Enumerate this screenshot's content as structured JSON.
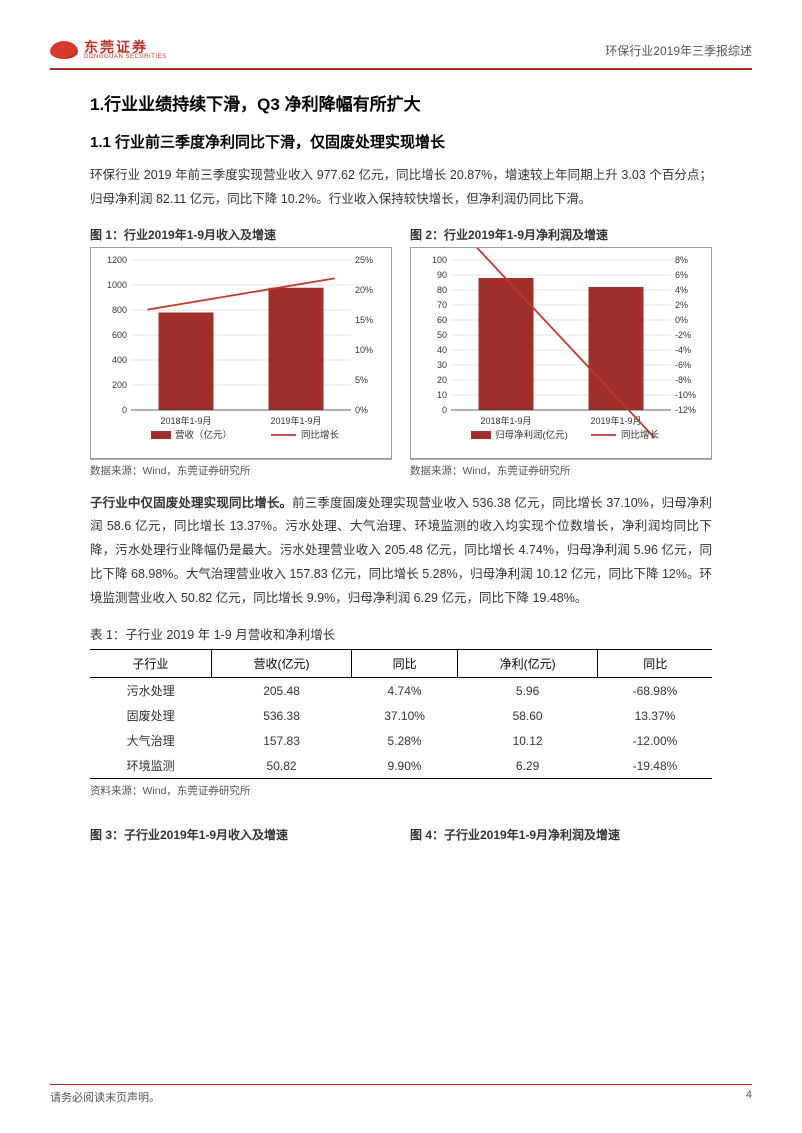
{
  "header": {
    "logo_cn": "东莞证券",
    "logo_en": "DONGGUAN SECURITIES",
    "doc_title": "环保行业2019年三季报综述"
  },
  "h1": "1.行业业绩持续下滑，Q3 净利降幅有所扩大",
  "h2": "1.1 行业前三季度净利同比下滑，仅固废处理实现增长",
  "para1": "环保行业 2019 年前三季度实现营业收入 977.62 亿元，同比增长 20.87%，增速较上年同期上升 3.03 个百分点；归母净利润 82.11 亿元，同比下降 10.2%。行业收入保持较快增长，但净利润仍同比下滑。",
  "chart1": {
    "title": "图 1：行业2019年1-9月收入及增速",
    "type": "bar+line",
    "categories": [
      "2018年1-9月",
      "2019年1-9月"
    ],
    "bar_values": [
      780,
      978
    ],
    "line_values_pct": [
      17.8,
      20.87
    ],
    "y_left": {
      "min": 0,
      "max": 1200,
      "ticks": [
        0,
        200,
        400,
        600,
        800,
        1000,
        1200
      ]
    },
    "y_right": {
      "min": 0,
      "max": 25,
      "ticks": [
        0,
        5,
        10,
        15,
        20,
        25
      ],
      "suffix": "%"
    },
    "bar_color": "#a02e2a",
    "line_color": "#c0392b",
    "legend_bar": "营收（亿元）",
    "legend_line": "同比增长",
    "source": "数据来源：Wind，东莞证券研究所",
    "bg_color": "#ffffff",
    "border_color": "#999999",
    "axis_font_size": 9,
    "grid_color": "#cccccc"
  },
  "chart2": {
    "title": "图 2：行业2019年1-9月净利润及增速",
    "type": "bar+line",
    "categories": [
      "2018年1-9月",
      "2019年1-9月"
    ],
    "bar_values": [
      88,
      82
    ],
    "line_values_pct": [
      5.5,
      -10.2
    ],
    "y_left": {
      "min": 0,
      "max": 100,
      "ticks": [
        0,
        10,
        20,
        30,
        40,
        50,
        60,
        70,
        80,
        90,
        100
      ]
    },
    "y_right": {
      "min": -12,
      "max": 8,
      "ticks": [
        -12,
        -10,
        -8,
        -6,
        -4,
        -2,
        0,
        2,
        4,
        6,
        8
      ],
      "suffix": "%"
    },
    "bar_color": "#a02e2a",
    "line_color": "#c0392b",
    "legend_bar": "归母净利润(亿元)",
    "legend_line": "同比增长",
    "source": "数据来源：Wind，东莞证券研究所",
    "bg_color": "#ffffff",
    "border_color": "#999999",
    "axis_font_size": 9,
    "grid_color": "#cccccc"
  },
  "para2": "子行业中仅固废处理实现同比增长。前三季度固废处理实现营业收入 536.38 亿元，同比增长 37.10%，归母净利润 58.6 亿元，同比增长 13.37%。污水处理、大气治理、环境监测的收入均实现个位数增长，净利润均同比下降，污水处理行业降幅仍是最大。污水处理营业收入 205.48 亿元，同比增长 4.74%，归母净利润 5.96 亿元，同比下降 68.98%。大气治理营业收入 157.83 亿元，同比增长 5.28%，归母净利润 10.12 亿元，同比下降 12%。环境监测营业收入 50.82 亿元，同比增长 9.9%，归母净利润 6.29 亿元，同比下降 19.48%。",
  "para2_bold_prefix": "子行业中仅固废处理实现同比增长。",
  "table": {
    "title": "表 1：子行业 2019 年 1-9 月营收和净利增长",
    "columns": [
      "子行业",
      "营收(亿元)",
      "同比",
      "净利(亿元)",
      "同比"
    ],
    "rows": [
      [
        "污水处理",
        "205.48",
        "4.74%",
        "5.96",
        "-68.98%"
      ],
      [
        "固废处理",
        "536.38",
        "37.10%",
        "58.60",
        "13.37%"
      ],
      [
        "大气治理",
        "157.83",
        "5.28%",
        "10.12",
        "-12.00%"
      ],
      [
        "环境监测",
        "50.82",
        "9.90%",
        "6.29",
        "-19.48%"
      ]
    ],
    "source": "资料来源：Wind，东莞证券研究所"
  },
  "chart3_title": "图 3：子行业2019年1-9月收入及增速",
  "chart4_title": "图 4：子行业2019年1-9月净利润及增速",
  "footer": {
    "disclaimer": "请务必阅读末页声明。",
    "page_no": "4"
  }
}
